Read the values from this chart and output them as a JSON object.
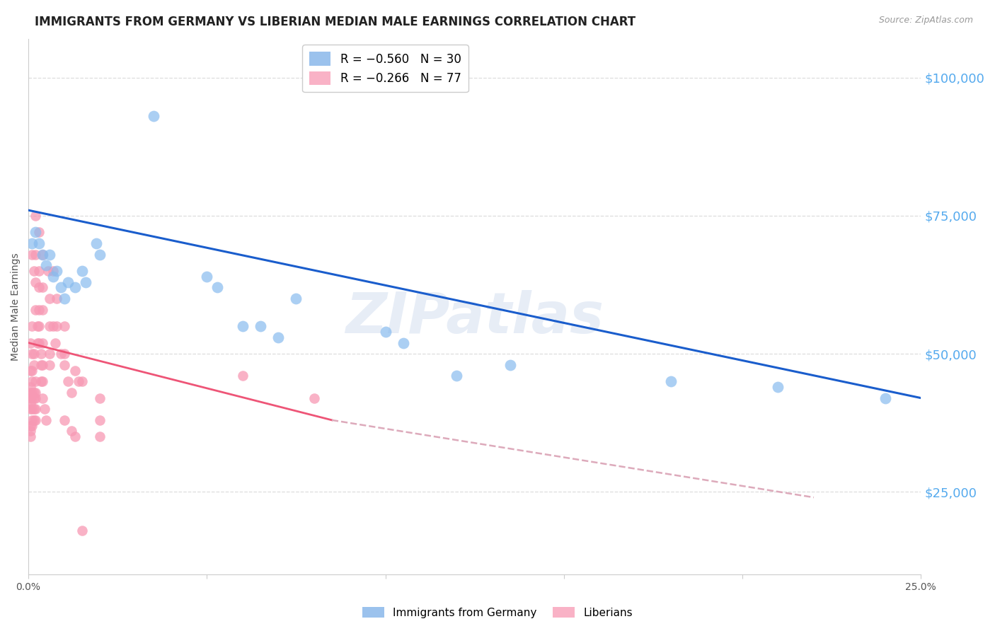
{
  "title": "IMMIGRANTS FROM GERMANY VS LIBERIAN MEDIAN MALE EARNINGS CORRELATION CHART",
  "source": "Source: ZipAtlas.com",
  "ylabel": "Median Male Earnings",
  "right_yticks": [
    25000,
    50000,
    75000,
    100000
  ],
  "right_yticklabels": [
    "$25,000",
    "$50,000",
    "$75,000",
    "$100,000"
  ],
  "xlim": [
    0.0,
    0.25
  ],
  "ylim": [
    10000,
    107000
  ],
  "watermark": "ZIPatlas",
  "germany_scatter": [
    [
      0.001,
      70000
    ],
    [
      0.002,
      72000
    ],
    [
      0.003,
      70000
    ],
    [
      0.004,
      68000
    ],
    [
      0.005,
      66000
    ],
    [
      0.006,
      68000
    ],
    [
      0.007,
      64000
    ],
    [
      0.008,
      65000
    ],
    [
      0.009,
      62000
    ],
    [
      0.01,
      60000
    ],
    [
      0.011,
      63000
    ],
    [
      0.013,
      62000
    ],
    [
      0.015,
      65000
    ],
    [
      0.016,
      63000
    ],
    [
      0.019,
      70000
    ],
    [
      0.02,
      68000
    ],
    [
      0.035,
      93000
    ],
    [
      0.05,
      64000
    ],
    [
      0.053,
      62000
    ],
    [
      0.06,
      55000
    ],
    [
      0.065,
      55000
    ],
    [
      0.07,
      53000
    ],
    [
      0.075,
      60000
    ],
    [
      0.1,
      54000
    ],
    [
      0.105,
      52000
    ],
    [
      0.12,
      46000
    ],
    [
      0.135,
      48000
    ],
    [
      0.18,
      45000
    ],
    [
      0.21,
      44000
    ],
    [
      0.24,
      42000
    ]
  ],
  "germany_trendline": [
    [
      0.0,
      76000
    ],
    [
      0.25,
      42000
    ]
  ],
  "liberian_scatter": [
    [
      0.0005,
      52000
    ],
    [
      0.001,
      55000
    ],
    [
      0.001,
      68000
    ],
    [
      0.0015,
      65000
    ],
    [
      0.0015,
      50000
    ],
    [
      0.0015,
      48000
    ],
    [
      0.002,
      75000
    ],
    [
      0.002,
      68000
    ],
    [
      0.002,
      63000
    ],
    [
      0.002,
      58000
    ],
    [
      0.0025,
      55000
    ],
    [
      0.0025,
      52000
    ],
    [
      0.003,
      72000
    ],
    [
      0.003,
      65000
    ],
    [
      0.003,
      62000
    ],
    [
      0.003,
      58000
    ],
    [
      0.003,
      55000
    ],
    [
      0.003,
      52000
    ],
    [
      0.0035,
      50000
    ],
    [
      0.0035,
      48000
    ],
    [
      0.0035,
      45000
    ],
    [
      0.004,
      68000
    ],
    [
      0.004,
      62000
    ],
    [
      0.004,
      58000
    ],
    [
      0.004,
      52000
    ],
    [
      0.004,
      48000
    ],
    [
      0.004,
      45000
    ],
    [
      0.004,
      42000
    ],
    [
      0.0045,
      40000
    ],
    [
      0.005,
      38000
    ],
    [
      0.0005,
      47000
    ],
    [
      0.0005,
      44000
    ],
    [
      0.0005,
      43000
    ],
    [
      0.0005,
      42000
    ],
    [
      0.0005,
      41000
    ],
    [
      0.0005,
      40000
    ],
    [
      0.0005,
      37000
    ],
    [
      0.0005,
      36000
    ],
    [
      0.0005,
      35000
    ],
    [
      0.001,
      50000
    ],
    [
      0.001,
      47000
    ],
    [
      0.001,
      45000
    ],
    [
      0.001,
      43000
    ],
    [
      0.001,
      42000
    ],
    [
      0.001,
      40000
    ],
    [
      0.001,
      38000
    ],
    [
      0.001,
      37000
    ],
    [
      0.0015,
      43000
    ],
    [
      0.0015,
      42000
    ],
    [
      0.0015,
      40000
    ],
    [
      0.0015,
      38000
    ],
    [
      0.002,
      45000
    ],
    [
      0.002,
      43000
    ],
    [
      0.002,
      42000
    ],
    [
      0.002,
      40000
    ],
    [
      0.002,
      38000
    ],
    [
      0.0055,
      65000
    ],
    [
      0.006,
      60000
    ],
    [
      0.006,
      55000
    ],
    [
      0.006,
      50000
    ],
    [
      0.006,
      48000
    ],
    [
      0.007,
      65000
    ],
    [
      0.007,
      55000
    ],
    [
      0.0075,
      52000
    ],
    [
      0.008,
      60000
    ],
    [
      0.008,
      55000
    ],
    [
      0.009,
      50000
    ],
    [
      0.01,
      55000
    ],
    [
      0.01,
      50000
    ],
    [
      0.01,
      48000
    ],
    [
      0.011,
      45000
    ],
    [
      0.012,
      43000
    ],
    [
      0.013,
      47000
    ],
    [
      0.014,
      45000
    ],
    [
      0.015,
      45000
    ],
    [
      0.01,
      38000
    ],
    [
      0.012,
      36000
    ],
    [
      0.013,
      35000
    ],
    [
      0.02,
      42000
    ],
    [
      0.02,
      38000
    ],
    [
      0.02,
      35000
    ],
    [
      0.015,
      18000
    ],
    [
      0.06,
      46000
    ],
    [
      0.08,
      42000
    ]
  ],
  "liberian_trendline_solid": [
    [
      0.0,
      52000
    ],
    [
      0.085,
      38000
    ]
  ],
  "liberian_trendline_dashed": [
    [
      0.085,
      38000
    ],
    [
      0.22,
      24000
    ]
  ],
  "germany_color": "#7aaee8",
  "germany_color_scatter": "#88bbee",
  "liberian_color": "#f799b4",
  "liberian_color_scatter": "#f799b4",
  "trendline_germany_color": "#1a5dcc",
  "trendline_liberian_solid_color": "#ee5577",
  "trendline_liberian_dashed_color": "#ddaabb",
  "bg_color": "#ffffff",
  "grid_color": "#dddddd",
  "right_axis_color": "#55aaee",
  "title_fontsize": 12,
  "axis_label_fontsize": 10
}
